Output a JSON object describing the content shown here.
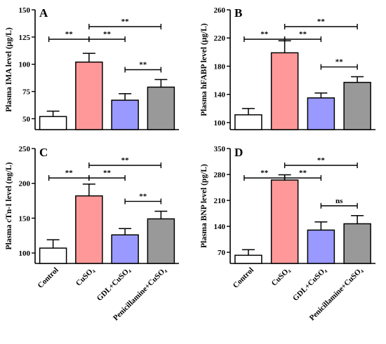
{
  "chart_data": [
    {
      "type": "bar",
      "panel": "A",
      "ylabel": "Plasma IMA level (μg/L)",
      "ylim": [
        40,
        150
      ],
      "yticks": [
        "50",
        "75",
        "100",
        "125",
        "150"
      ],
      "categories": [
        "Control",
        "CuSO₄",
        "GDL+CuSO₄",
        "Penicillamine+CuSO₄"
      ],
      "values": [
        52,
        102,
        67,
        79
      ],
      "errors": [
        5,
        8,
        6,
        7
      ],
      "brackets": [
        {
          "from": 0,
          "to": 1,
          "label": "**"
        },
        {
          "from": 1,
          "to": 2,
          "label": "**"
        },
        {
          "from": 1,
          "to": 3,
          "label": "**"
        },
        {
          "from": 2,
          "to": 3,
          "label": "**"
        }
      ]
    },
    {
      "type": "bar",
      "panel": "B",
      "ylabel": "Plasma hFABP level (μg/L)",
      "ylim": [
        90,
        260
      ],
      "yticks": [
        "100",
        "140",
        "180",
        "220",
        "260"
      ],
      "categories": [
        "Control",
        "CuSO₄",
        "GDL+CuSO₄",
        "Penicillamine+CuSO₄"
      ],
      "values": [
        111,
        199,
        135,
        157
      ],
      "errors": [
        9,
        17,
        7,
        8
      ],
      "brackets": [
        {
          "from": 0,
          "to": 1,
          "label": "**"
        },
        {
          "from": 1,
          "to": 2,
          "label": "**"
        },
        {
          "from": 1,
          "to": 3,
          "label": "**"
        },
        {
          "from": 2,
          "to": 3,
          "label": "**"
        }
      ]
    },
    {
      "type": "bar",
      "panel": "C",
      "ylabel": "Plasma cTn-I level (ng/L)",
      "ylim": [
        85,
        250
      ],
      "yticks": [
        "100",
        "150",
        "200",
        "250"
      ],
      "categories": [
        "Control",
        "CuSO₄",
        "GDL+CuSO₄",
        "Penicillamine+CuSO₄"
      ],
      "values": [
        107,
        182,
        126,
        149
      ],
      "errors": [
        12,
        17,
        9,
        11
      ],
      "brackets": [
        {
          "from": 0,
          "to": 1,
          "label": "**"
        },
        {
          "from": 1,
          "to": 2,
          "label": "**"
        },
        {
          "from": 1,
          "to": 3,
          "label": "**"
        },
        {
          "from": 2,
          "to": 3,
          "label": "**"
        }
      ]
    },
    {
      "type": "bar",
      "panel": "D",
      "ylabel": "Plasma BNP level (pg/L)",
      "ylim": [
        40,
        350
      ],
      "yticks": [
        "70",
        "140",
        "210",
        "280",
        "350"
      ],
      "categories": [
        "Control",
        "CuSO₄",
        "GDL+CuSO₄",
        "Penicillamine+CuSO₄"
      ],
      "values": [
        62,
        265,
        130,
        147
      ],
      "errors": [
        15,
        14,
        22,
        22
      ],
      "brackets": [
        {
          "from": 0,
          "to": 1,
          "label": "**"
        },
        {
          "from": 1,
          "to": 2,
          "label": "**"
        },
        {
          "from": 1,
          "to": 3,
          "label": "**"
        },
        {
          "from": 2,
          "to": 3,
          "label": "ns"
        }
      ]
    }
  ],
  "colors": {
    "bars": [
      "#ffffff",
      "#ff9999",
      "#9999ff",
      "#999999"
    ],
    "stroke": "#000000"
  }
}
